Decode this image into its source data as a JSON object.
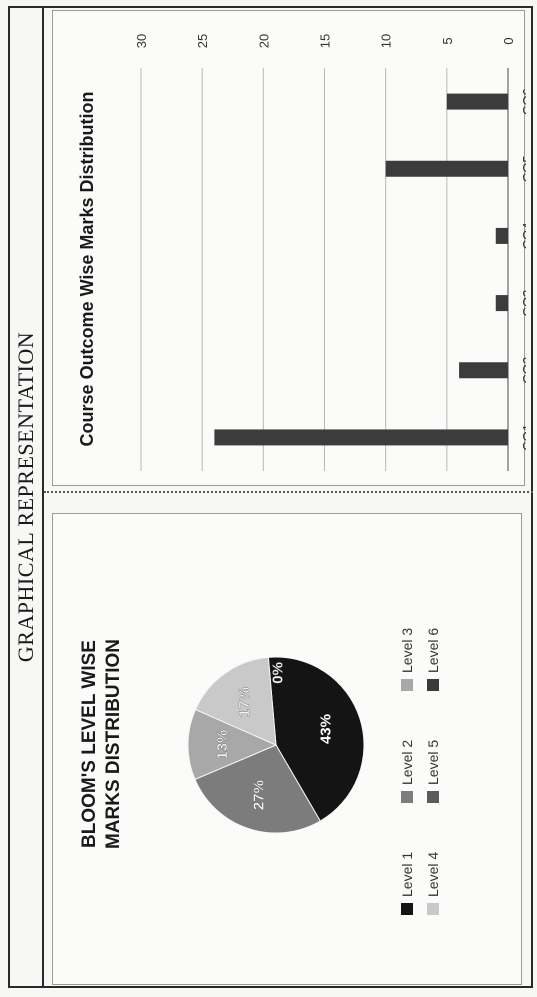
{
  "page": {
    "title": "GRAPHICAL REPRESENTATION"
  },
  "chart_data": [
    {
      "type": "pie",
      "title_lines": [
        "BLOOM'S LEVEL WISE",
        "MARKS DISTRIBUTION"
      ],
      "labels": [
        "Level 1",
        "Level 2",
        "Level 3",
        "Level 4",
        "Level 5",
        "Level 6"
      ],
      "values": [
        43,
        27,
        13,
        17,
        0,
        0
      ],
      "data_labels": [
        "43%",
        "27%",
        "13%",
        "17%",
        "0%",
        ""
      ],
      "colors": [
        "#141414",
        "#7c7c7c",
        "#a8a8a8",
        "#c9c9c9",
        "#5a5a5a",
        "#3a3a3a"
      ],
      "legend_position": "bottom"
    },
    {
      "type": "bar",
      "title": "Course Outcome Wise Marks Distribution",
      "categories": [
        "CO1",
        "CO2",
        "CO3",
        "CO4",
        "CO5",
        "CO6"
      ],
      "values": [
        24,
        4,
        1,
        1,
        10,
        5
      ],
      "ylim": [
        0,
        30
      ],
      "yticks": [
        "0",
        "5",
        "10",
        "15",
        "20",
        "25",
        "30"
      ],
      "grid": true,
      "bar_color": "#3c3c3c"
    }
  ]
}
